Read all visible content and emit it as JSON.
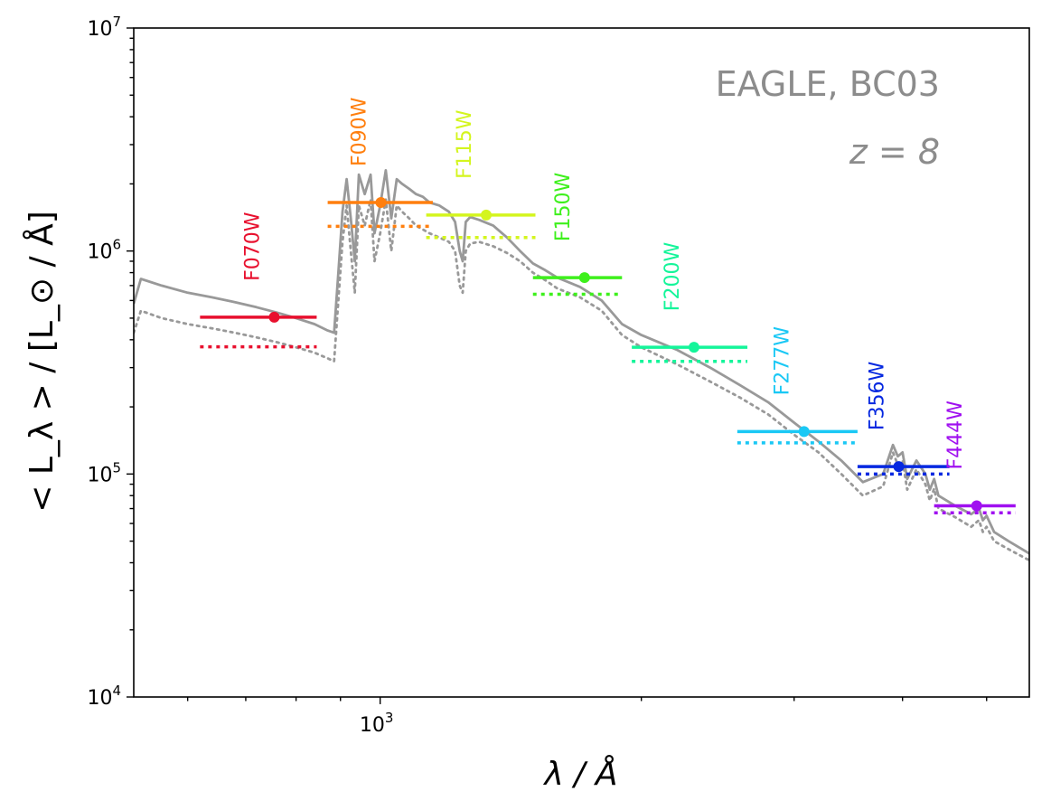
{
  "chart_data": {
    "type": "line",
    "xscale": "log",
    "yscale": "log",
    "xlim": [
      520,
      5600
    ],
    "ylim": [
      10000,
      10000000
    ],
    "grid": false,
    "xlabel": "λ / Å",
    "ylabel": "< L_λ > / [L_⊙ / Å]",
    "annotations": [
      "EAGLE, BC03",
      "z = 8"
    ],
    "x_ticks": [
      {
        "value": 1000,
        "label_base": "10",
        "label_exp": "3"
      }
    ],
    "y_ticks": [
      {
        "value": 10000,
        "label_base": "10",
        "label_exp": "4"
      },
      {
        "value": 100000,
        "label_base": "10",
        "label_exp": "5"
      },
      {
        "value": 1000000,
        "label_base": "10",
        "label_exp": "6"
      },
      {
        "value": 10000000,
        "label_base": "10",
        "label_exp": "7"
      }
    ],
    "spectrum_color": "#999999",
    "series": [
      {
        "style": "solid",
        "x": [
          520,
          530,
          560,
          600,
          640,
          680,
          720,
          760,
          800,
          840,
          870,
          885,
          895,
          905,
          915,
          925,
          935,
          945,
          960,
          975,
          985,
          1000,
          1015,
          1030,
          1045,
          1060,
          1080,
          1100,
          1120,
          1140,
          1170,
          1200,
          1220,
          1235,
          1245,
          1255,
          1270,
          1300,
          1350,
          1400,
          1450,
          1500,
          1550,
          1600,
          1700,
          1800,
          1900,
          2000,
          2200,
          2400,
          2600,
          2800,
          3000,
          3200,
          3400,
          3600,
          3800,
          3900,
          3950,
          4000,
          4050,
          4150,
          4250,
          4300,
          4350,
          4400,
          4600,
          4800,
          4900,
          4950,
          5000,
          5100,
          5300,
          5600
        ],
        "y": [
          580000,
          750000,
          700000,
          650000,
          620000,
          590000,
          560000,
          530000,
          500000,
          470000,
          440000,
          430000,
          800000,
          1500000,
          2100000,
          1400000,
          900000,
          2200000,
          1800000,
          2200000,
          1200000,
          1600000,
          2300000,
          1400000,
          2100000,
          2000000,
          1900000,
          1800000,
          1750000,
          1650000,
          1600000,
          1500000,
          1350000,
          1000000,
          900000,
          1350000,
          1420000,
          1380000,
          1300000,
          1150000,
          1000000,
          880000,
          820000,
          760000,
          690000,
          600000,
          470000,
          420000,
          360000,
          300000,
          250000,
          210000,
          170000,
          140000,
          115000,
          92000,
          100000,
          135000,
          120000,
          125000,
          95000,
          115000,
          100000,
          85000,
          95000,
          80000,
          72000,
          66000,
          70000,
          62000,
          65000,
          55000,
          50000,
          44000
        ]
      },
      {
        "style": "dotted",
        "x": [
          520,
          530,
          560,
          600,
          640,
          680,
          720,
          760,
          800,
          840,
          870,
          885,
          895,
          905,
          915,
          925,
          935,
          945,
          960,
          975,
          985,
          1000,
          1015,
          1030,
          1045,
          1060,
          1080,
          1100,
          1120,
          1140,
          1170,
          1200,
          1220,
          1235,
          1245,
          1255,
          1270,
          1300,
          1350,
          1400,
          1450,
          1500,
          1550,
          1600,
          1700,
          1800,
          1900,
          2000,
          2200,
          2400,
          2600,
          2800,
          3000,
          3200,
          3400,
          3600,
          3800,
          3900,
          3950,
          4000,
          4050,
          4150,
          4250,
          4300,
          4350,
          4400,
          4600,
          4800,
          4900,
          4950,
          5000,
          5100,
          5300,
          5600
        ],
        "y": [
          430000,
          540000,
          500000,
          470000,
          450000,
          430000,
          410000,
          390000,
          370000,
          350000,
          330000,
          320000,
          600000,
          1100000,
          1600000,
          1000000,
          650000,
          1600000,
          1300000,
          1700000,
          900000,
          1200000,
          1700000,
          1000000,
          1600000,
          1500000,
          1400000,
          1300000,
          1250000,
          1200000,
          1150000,
          1100000,
          1000000,
          700000,
          650000,
          1000000,
          1080000,
          1100000,
          1050000,
          980000,
          900000,
          800000,
          740000,
          680000,
          620000,
          540000,
          420000,
          370000,
          310000,
          260000,
          220000,
          185000,
          150000,
          125000,
          100000,
          80000,
          88000,
          125000,
          110000,
          115000,
          85000,
          105000,
          90000,
          76000,
          86000,
          70000,
          64000,
          58000,
          62000,
          55000,
          58000,
          50000,
          46000,
          41000
        ]
      }
    ],
    "filters": [
      {
        "name": "F070W",
        "color": "#e8102e",
        "center": 755,
        "x_range": [
          620,
          845
        ],
        "value": 505000,
        "dotted_value": 372000
      },
      {
        "name": "F090W",
        "color": "#ff7f0e",
        "center": 1002,
        "x_range": [
          870,
          1150
        ],
        "value": 1650000,
        "dotted_value": 1290000
      },
      {
        "name": "F115W",
        "color": "#d4f51e",
        "center": 1325,
        "x_range": [
          1130,
          1510
        ],
        "value": 1450000,
        "dotted_value": 1150000
      },
      {
        "name": "F150W",
        "color": "#3ef01c",
        "center": 1720,
        "x_range": [
          1500,
          1900
        ],
        "value": 760000,
        "dotted_value": 640000
      },
      {
        "name": "F200W",
        "color": "#14f59a",
        "center": 2300,
        "x_range": [
          1950,
          2650
        ],
        "value": 370000,
        "dotted_value": 320000
      },
      {
        "name": "F277W",
        "color": "#1ac8f5",
        "center": 3080,
        "x_range": [
          2580,
          3550
        ],
        "value": 155000,
        "dotted_value": 138000
      },
      {
        "name": "F356W",
        "color": "#0528e0",
        "center": 3960,
        "x_range": [
          3550,
          4530
        ],
        "value": 108000,
        "dotted_value": 100000
      },
      {
        "name": "F444W",
        "color": "#a010f0",
        "center": 4870,
        "x_range": [
          4350,
          5400
        ],
        "value": 72000,
        "dotted_value": 67000
      }
    ]
  }
}
